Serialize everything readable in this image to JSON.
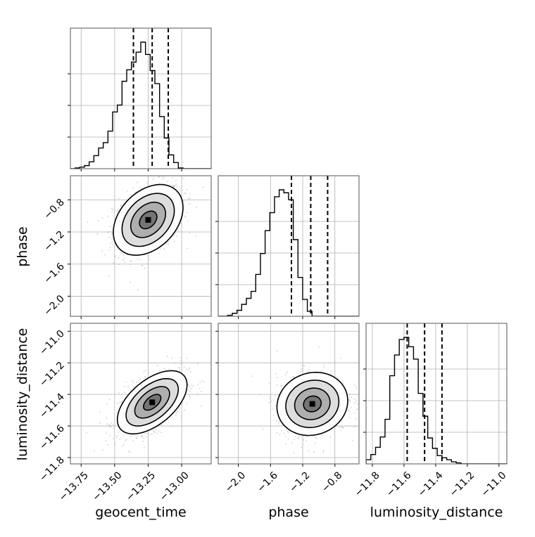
{
  "chart_data": {
    "type": "corner",
    "parameters": [
      "geocent_time",
      "phase",
      "luminosity_distance"
    ],
    "axis_labels": {
      "geocent_time": "geocent_time",
      "phase": "phase",
      "luminosity_distance": "luminosity_distance"
    },
    "ranges": {
      "geocent_time": [
        -13.83,
        -12.78
      ],
      "phase": [
        -2.25,
        -0.5
      ],
      "luminosity_distance": [
        -11.84,
        -10.95
      ]
    },
    "ticks": {
      "geocent_time": [
        -13.75,
        -13.5,
        -13.25,
        -13.0
      ],
      "phase": [
        -2.0,
        -1.6,
        -1.2,
        -0.8
      ],
      "luminosity_distance": [
        -11.8,
        -11.6,
        -11.4,
        -11.2,
        -11.0
      ]
    },
    "tick_labels": {
      "geocent_time": [
        "−13.75",
        "−13.50",
        "−13.25",
        "−13.00"
      ],
      "phase": [
        "−2.0",
        "−1.6",
        "−1.2",
        "−0.8"
      ],
      "luminosity_distance": [
        "−11.8",
        "−11.6",
        "−11.4",
        "−11.2",
        "−11.0"
      ]
    },
    "quantiles": {
      "geocent_time": [
        -13.36,
        -13.22,
        -13.1
      ],
      "phase": [
        -1.34,
        -1.1,
        -0.89
      ],
      "luminosity_distance": [
        -11.58,
        -11.47,
        -11.36
      ]
    },
    "histograms": {
      "geocent_time": {
        "edges_start": -13.83,
        "bin_width": 0.035,
        "counts": [
          0,
          1,
          2,
          4,
          9,
          17,
          27,
          34,
          49,
          74,
          83,
          114,
          129,
          139,
          152,
          165,
          149,
          128,
          111,
          68,
          40,
          18,
          8,
          1,
          0,
          0,
          0,
          0,
          0,
          0
        ]
      },
      "phase": {
        "edges_start": -2.25,
        "bin_width": 0.0583,
        "counts": [
          0,
          0,
          1,
          3,
          6,
          12,
          18,
          25,
          42,
          63,
          86,
          104,
          120,
          127,
          124,
          117,
          77,
          39,
          17,
          5,
          0,
          0,
          0,
          0,
          0,
          0,
          0,
          0,
          0,
          0
        ]
      },
      "luminosity_distance": {
        "edges_start": -11.84,
        "bin_width": 0.03,
        "counts": [
          4,
          9,
          16,
          26,
          43,
          85,
          105,
          120,
          122,
          113,
          101,
          68,
          46,
          25,
          15,
          8,
          6,
          4,
          2,
          1,
          0,
          0,
          0,
          0,
          0,
          0,
          0,
          0,
          0,
          0
        ]
      }
    },
    "pairs": [
      {
        "x": "geocent_time",
        "y": "phase",
        "center": [
          -13.25,
          -1.05
        ],
        "spread": [
          0.13,
          0.22
        ],
        "corr": 0.35
      },
      {
        "x": "geocent_time",
        "y": "luminosity_distance",
        "center": [
          -13.22,
          -11.45
        ],
        "spread": [
          0.13,
          0.1
        ],
        "corr": 0.55
      },
      {
        "x": "phase",
        "y": "luminosity_distance",
        "center": [
          -1.08,
          -11.46
        ],
        "spread": [
          0.22,
          0.1
        ],
        "corr": 0.1
      }
    ],
    "contour_levels_sigma": [
      0.5,
      1.0,
      1.5,
      2.0
    ],
    "grid": true,
    "colors": {
      "hist": "#000000",
      "quantile": "#000000",
      "grid": "#b0b0b0",
      "points": "#9a9a9a",
      "contour": "#000000"
    }
  }
}
